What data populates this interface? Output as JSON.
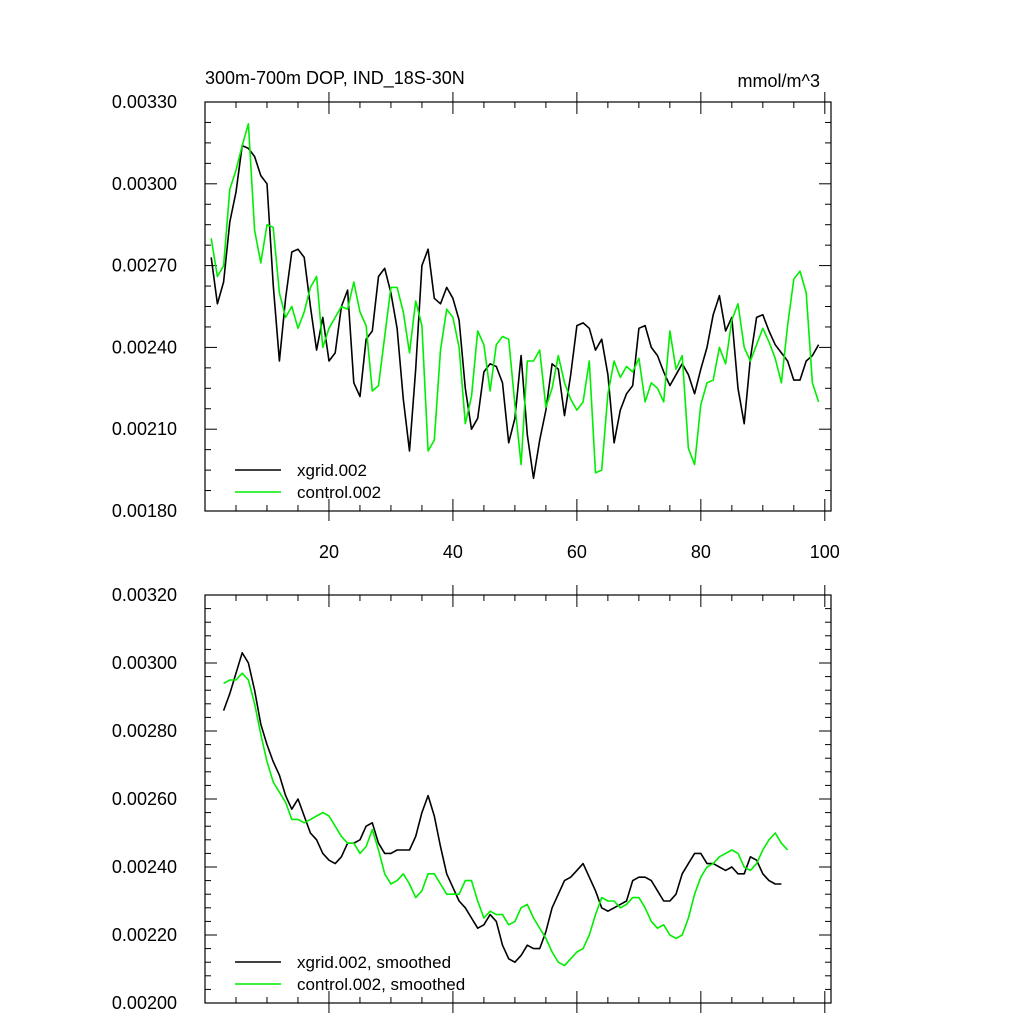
{
  "colors": {
    "xgrid": "#000000",
    "control": "#00ee00"
  },
  "chart_data": [
    {
      "type": "line",
      "title": "300m-700m DOP, IND_18S-30N",
      "units": "mmol/m^3",
      "xlabel": "",
      "ylabel": "",
      "xlim": [
        0,
        101
      ],
      "ylim": [
        0.0018,
        0.0033
      ],
      "yticks": [
        "0.00180",
        "0.00210",
        "0.00240",
        "0.00270",
        "0.00300",
        "0.00330"
      ],
      "xticks": [
        "20",
        "40",
        "60",
        "80",
        "100"
      ],
      "legend": "bottom-left",
      "x_start": 1,
      "series": [
        {
          "name": "xgrid.002",
          "color": "#000000",
          "values": [
            0.00273,
            0.00256,
            0.00264,
            0.00286,
            0.00297,
            0.00314,
            0.00313,
            0.0031,
            0.00303,
            0.003,
            0.00263,
            0.00235,
            0.00258,
            0.00275,
            0.00276,
            0.00273,
            0.00255,
            0.00239,
            0.00251,
            0.00235,
            0.00238,
            0.00255,
            0.00261,
            0.00227,
            0.00222,
            0.00243,
            0.00246,
            0.00266,
            0.00269,
            0.0026,
            0.00247,
            0.00221,
            0.00202,
            0.00232,
            0.0027,
            0.00276,
            0.00258,
            0.00256,
            0.00262,
            0.00258,
            0.0025,
            0.00225,
            0.0021,
            0.00214,
            0.00231,
            0.00234,
            0.00233,
            0.00227,
            0.00205,
            0.00214,
            0.00237,
            0.00208,
            0.00192,
            0.00206,
            0.00217,
            0.00234,
            0.00232,
            0.00215,
            0.0023,
            0.00248,
            0.00249,
            0.00247,
            0.00239,
            0.00243,
            0.0023,
            0.00205,
            0.00217,
            0.00223,
            0.00226,
            0.00247,
            0.00248,
            0.0024,
            0.00237,
            0.00231,
            0.00226,
            0.0023,
            0.00234,
            0.0023,
            0.00223,
            0.00232,
            0.0024,
            0.00252,
            0.00259,
            0.00246,
            0.00251,
            0.00225,
            0.00212,
            0.00236,
            0.00251,
            0.00252,
            0.00246,
            0.00241,
            0.00238,
            0.00235,
            0.00228,
            0.00228,
            0.00235,
            0.00237,
            0.00241
          ]
        },
        {
          "name": "control.002",
          "color": "#00ee00",
          "values": [
            0.0028,
            0.00266,
            0.0027,
            0.00298,
            0.00305,
            0.00314,
            0.00322,
            0.00283,
            0.00271,
            0.00285,
            0.00284,
            0.0026,
            0.00251,
            0.00255,
            0.00247,
            0.00253,
            0.00262,
            0.00266,
            0.0024,
            0.00247,
            0.00251,
            0.00255,
            0.00254,
            0.00264,
            0.00253,
            0.00248,
            0.00224,
            0.00226,
            0.00244,
            0.00262,
            0.00262,
            0.00253,
            0.00238,
            0.00257,
            0.00248,
            0.00202,
            0.00206,
            0.00239,
            0.00254,
            0.00251,
            0.0024,
            0.00212,
            0.00222,
            0.00246,
            0.00241,
            0.00224,
            0.00241,
            0.00244,
            0.00243,
            0.00219,
            0.00197,
            0.00235,
            0.00235,
            0.00239,
            0.00218,
            0.00225,
            0.00237,
            0.00227,
            0.00221,
            0.00217,
            0.0022,
            0.00235,
            0.00194,
            0.00195,
            0.00223,
            0.00235,
            0.00229,
            0.00233,
            0.00231,
            0.00236,
            0.0022,
            0.00227,
            0.00225,
            0.0022,
            0.00246,
            0.00232,
            0.00237,
            0.00203,
            0.00197,
            0.00219,
            0.00227,
            0.00228,
            0.0024,
            0.00234,
            0.0025,
            0.00256,
            0.0024,
            0.00235,
            0.00241,
            0.00247,
            0.00242,
            0.00236,
            0.00227,
            0.00248,
            0.00265,
            0.00268,
            0.0026,
            0.00227,
            0.0022
          ]
        }
      ]
    },
    {
      "type": "line",
      "title": "",
      "xlabel": "",
      "ylabel": "",
      "xlim": [
        0,
        101
      ],
      "ylim": [
        0.002,
        0.0032
      ],
      "yticks": [
        "0.00200",
        "0.00220",
        "0.00240",
        "0.00260",
        "0.00280",
        "0.00300",
        "0.00320"
      ],
      "legend": "bottom-left",
      "x_start": 3,
      "series": [
        {
          "name": "xgrid.002, smoothed",
          "color": "#000000",
          "values": [
            0.00286,
            0.00291,
            0.00297,
            0.00303,
            0.003,
            0.00292,
            0.00282,
            0.00276,
            0.00271,
            0.00267,
            0.00261,
            0.00257,
            0.0026,
            0.00255,
            0.0025,
            0.00248,
            0.00244,
            0.00242,
            0.00241,
            0.00243,
            0.00247,
            0.00247,
            0.00248,
            0.00252,
            0.00253,
            0.00247,
            0.00244,
            0.00244,
            0.00245,
            0.00245,
            0.00245,
            0.00249,
            0.00256,
            0.00261,
            0.00255,
            0.00246,
            0.00238,
            0.00234,
            0.0023,
            0.00228,
            0.00225,
            0.00222,
            0.00223,
            0.00226,
            0.00224,
            0.00217,
            0.00213,
            0.00212,
            0.00214,
            0.00217,
            0.00216,
            0.00216,
            0.00221,
            0.00228,
            0.00232,
            0.00236,
            0.00237,
            0.00239,
            0.00241,
            0.00237,
            0.00233,
            0.00228,
            0.00227,
            0.00228,
            0.00229,
            0.0023,
            0.00236,
            0.00237,
            0.00237,
            0.00236,
            0.00233,
            0.0023,
            0.0023,
            0.00232,
            0.00238,
            0.00241,
            0.00244,
            0.00244,
            0.00241,
            0.00241,
            0.0024,
            0.00239,
            0.0024,
            0.00238,
            0.00238,
            0.00243,
            0.00242,
            0.00238,
            0.00236,
            0.00235,
            0.00235
          ]
        },
        {
          "name": "control.002, smoothed",
          "color": "#00ee00",
          "values": [
            0.00294,
            0.00295,
            0.00295,
            0.00297,
            0.00295,
            0.00288,
            0.00279,
            0.00271,
            0.00265,
            0.00262,
            0.00259,
            0.00254,
            0.00254,
            0.00253,
            0.00254,
            0.00255,
            0.00256,
            0.00255,
            0.00252,
            0.00249,
            0.00247,
            0.00247,
            0.00244,
            0.00246,
            0.00251,
            0.00245,
            0.00238,
            0.00235,
            0.00236,
            0.00238,
            0.00235,
            0.00231,
            0.00233,
            0.00238,
            0.00238,
            0.00235,
            0.00232,
            0.00232,
            0.00232,
            0.00236,
            0.00236,
            0.0023,
            0.00225,
            0.00227,
            0.00226,
            0.00226,
            0.00223,
            0.00224,
            0.00228,
            0.00229,
            0.00225,
            0.00222,
            0.00219,
            0.00215,
            0.00212,
            0.00211,
            0.00213,
            0.00215,
            0.00216,
            0.0022,
            0.00226,
            0.00231,
            0.0023,
            0.0023,
            0.00228,
            0.00229,
            0.00231,
            0.00231,
            0.00228,
            0.00224,
            0.00222,
            0.00223,
            0.0022,
            0.00219,
            0.0022,
            0.00225,
            0.00232,
            0.00237,
            0.0024,
            0.00241,
            0.00243,
            0.00244,
            0.00245,
            0.00244,
            0.0024,
            0.00239,
            0.00241,
            0.00245,
            0.00248,
            0.0025,
            0.00247,
            0.00245
          ]
        }
      ]
    }
  ]
}
